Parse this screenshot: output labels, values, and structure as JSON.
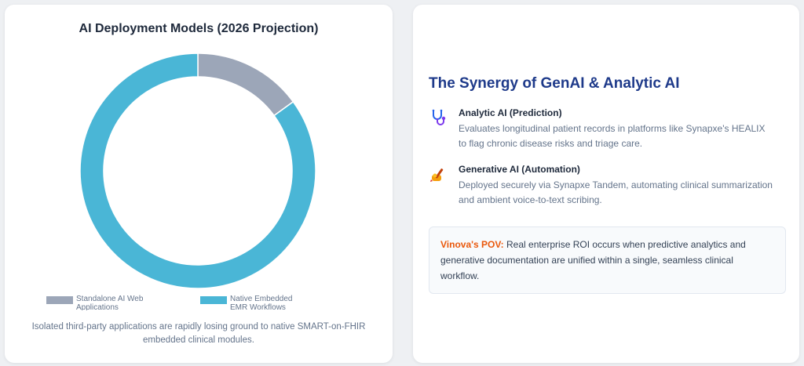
{
  "chart_data": {
    "type": "pie",
    "donut": true,
    "title": "AI Deployment Models (2026 Projection)",
    "categories": [
      "Standalone AI Web Applications",
      "Native Embedded EMR Workflows"
    ],
    "values": [
      15,
      85
    ],
    "colors": [
      "#9ca6b8",
      "#4ab6d6"
    ],
    "legend_position": "bottom",
    "caption": "Isolated third-party applications are rapidly losing ground to native SMART-on-FHIR embedded clinical modules."
  },
  "synergy": {
    "title": "The Synergy of GenAI & Analytic AI",
    "items": [
      {
        "icon": "stethoscope-icon",
        "heading": "Analytic AI (Prediction)",
        "description": "Evaluates longitudinal patient records in platforms like Synapxe's HEALIX to flag chronic disease risks and triage care."
      },
      {
        "icon": "writing-hand-icon",
        "heading": "Generative AI (Automation)",
        "description": "Deployed securely via Synapxe Tandem, automating clinical summarization and ambient voice-to-text scribing."
      }
    ],
    "pov": {
      "label": "Vinova's POV:",
      "text": "Real enterprise ROI occurs when predictive analytics and generative documentation are unified within a single, seamless clinical workflow."
    }
  }
}
